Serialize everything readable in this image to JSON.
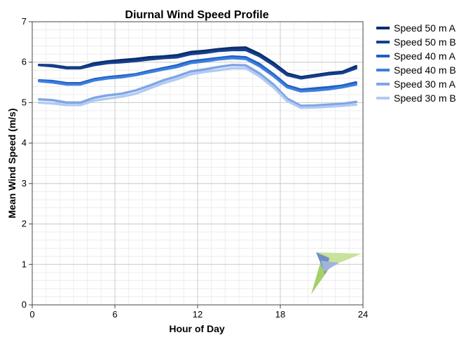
{
  "chart_data": {
    "type": "line",
    "title": "Diurnal Wind Speed Profile",
    "xlabel": "Hour of Day",
    "ylabel": "Mean Wind Speed (m/s)",
    "xlim": [
      0,
      24
    ],
    "ylim": [
      0,
      7
    ],
    "x_ticks": [
      "0",
      "6",
      "12",
      "18",
      "24"
    ],
    "y_ticks": [
      "0",
      "1",
      "2",
      "3",
      "4",
      "5",
      "6",
      "7"
    ],
    "grid": true,
    "legend_position": "right",
    "x": [
      0.5,
      1.5,
      2.5,
      3.5,
      4.5,
      5.5,
      6.5,
      7.5,
      8.5,
      9.5,
      10.5,
      11.5,
      12.5,
      13.5,
      14.5,
      15.5,
      16.5,
      17.5,
      18.5,
      19.5,
      20.5,
      21.5,
      22.5,
      23.5
    ],
    "series": [
      {
        "name": "Speed 50 m A",
        "color": "#0b2e6b",
        "values": [
          5.93,
          5.92,
          5.87,
          5.87,
          5.97,
          6.02,
          6.05,
          6.08,
          6.12,
          6.14,
          6.17,
          6.25,
          6.28,
          6.32,
          6.35,
          6.36,
          6.2,
          5.98,
          5.72,
          5.63,
          5.68,
          5.73,
          5.76,
          5.9
        ]
      },
      {
        "name": "Speed 50 m B",
        "color": "#143f8f",
        "values": [
          5.93,
          5.9,
          5.85,
          5.85,
          5.93,
          5.98,
          6.0,
          6.03,
          6.07,
          6.1,
          6.12,
          6.2,
          6.23,
          6.28,
          6.3,
          6.3,
          6.15,
          5.93,
          5.68,
          5.6,
          5.65,
          5.7,
          5.73,
          5.85
        ]
      },
      {
        "name": "Speed 40 m A",
        "color": "#1f5fc4",
        "values": [
          5.55,
          5.53,
          5.48,
          5.48,
          5.58,
          5.63,
          5.66,
          5.7,
          5.78,
          5.85,
          5.92,
          6.02,
          6.06,
          6.1,
          6.14,
          6.12,
          5.95,
          5.7,
          5.42,
          5.32,
          5.35,
          5.38,
          5.42,
          5.5
        ]
      },
      {
        "name": "Speed 40 m B",
        "color": "#3d7fdc",
        "values": [
          5.53,
          5.5,
          5.45,
          5.45,
          5.55,
          5.6,
          5.63,
          5.68,
          5.75,
          5.82,
          5.88,
          5.98,
          6.02,
          6.07,
          6.1,
          6.08,
          5.9,
          5.66,
          5.38,
          5.28,
          5.3,
          5.33,
          5.38,
          5.45
        ]
      },
      {
        "name": "Speed 30 m A",
        "color": "#7ea6e6",
        "values": [
          5.08,
          5.06,
          5.0,
          5.0,
          5.12,
          5.18,
          5.22,
          5.3,
          5.42,
          5.55,
          5.65,
          5.77,
          5.82,
          5.88,
          5.93,
          5.92,
          5.72,
          5.45,
          5.1,
          4.92,
          4.93,
          4.95,
          4.97,
          5.02
        ]
      },
      {
        "name": "Speed 30 m B",
        "color": "#b3caf0",
        "values": [
          5.0,
          4.98,
          4.94,
          4.94,
          5.05,
          5.1,
          5.15,
          5.22,
          5.35,
          5.48,
          5.58,
          5.7,
          5.76,
          5.8,
          5.85,
          5.85,
          5.65,
          5.38,
          5.04,
          4.87,
          4.88,
          4.9,
          4.92,
          4.95
        ]
      }
    ]
  }
}
